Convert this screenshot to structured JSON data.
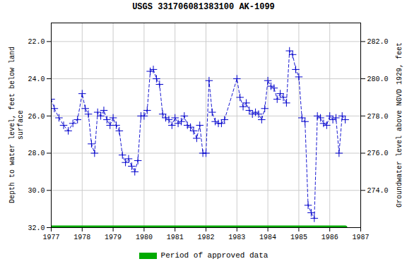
{
  "chart_data": {
    "type": "line",
    "title": "USGS 331706081383100 AK-1099",
    "ylabel": "Depth to water level, feet below land\nsurface",
    "y2label": "Groundwater level above NGVD 1929, feet",
    "x": [
      1977.0,
      1977.1,
      1977.25,
      1977.4,
      1977.55,
      1977.7,
      1977.85,
      1978.0,
      1978.1,
      1978.2,
      1978.3,
      1978.4,
      1978.5,
      1978.6,
      1978.7,
      1978.8,
      1978.9,
      1979.0,
      1979.1,
      1979.2,
      1979.3,
      1979.4,
      1979.5,
      1979.6,
      1979.7,
      1979.8,
      1979.9,
      1980.0,
      1980.1,
      1980.2,
      1980.3,
      1980.4,
      1980.5,
      1980.6,
      1980.7,
      1980.8,
      1980.9,
      1981.0,
      1981.1,
      1981.2,
      1981.3,
      1981.4,
      1981.5,
      1981.6,
      1981.7,
      1981.8,
      1981.9,
      1982.0,
      1982.1,
      1982.2,
      1982.3,
      1982.4,
      1982.5,
      1982.6,
      1983.0,
      1983.1,
      1983.2,
      1983.3,
      1983.4,
      1983.5,
      1983.6,
      1983.7,
      1983.8,
      1983.9,
      1984.0,
      1984.1,
      1984.2,
      1984.3,
      1984.4,
      1984.5,
      1984.6,
      1984.7,
      1984.8,
      1984.9,
      1985.0,
      1985.1,
      1985.2,
      1985.3,
      1985.4,
      1985.5,
      1985.6,
      1985.7,
      1985.8,
      1985.9,
      1986.0,
      1986.1,
      1986.2,
      1986.3,
      1986.4,
      1986.5
    ],
    "series": [
      {
        "color": "#0000cc",
        "marker": "plus",
        "line_style": "dashed",
        "values": [
          25.1,
          25.6,
          26.1,
          26.5,
          26.8,
          26.4,
          26.2,
          24.8,
          25.6,
          25.9,
          27.5,
          28.0,
          25.8,
          26.0,
          25.7,
          26.2,
          26.5,
          26.1,
          26.5,
          26.8,
          28.1,
          28.5,
          28.3,
          28.7,
          29.0,
          28.4,
          26.0,
          26.0,
          25.7,
          23.6,
          23.5,
          24.0,
          24.3,
          25.9,
          26.1,
          26.2,
          26.5,
          26.1,
          26.4,
          26.3,
          26.0,
          26.5,
          26.6,
          26.8,
          27.2,
          26.5,
          28.0,
          28.0,
          24.1,
          25.8,
          26.3,
          26.4,
          26.4,
          26.2,
          24.0,
          25.0,
          25.5,
          25.3,
          25.7,
          25.9,
          25.8,
          25.9,
          26.2,
          25.6,
          24.1,
          24.4,
          24.5,
          25.1,
          24.8,
          25.0,
          25.3,
          22.5,
          22.7,
          23.5,
          23.9,
          26.1,
          26.3,
          30.8,
          31.2,
          31.5,
          26.0,
          26.1,
          26.4,
          26.5,
          26.0,
          26.2,
          26.1,
          28.0,
          26.0,
          26.2
        ]
      },
      {
        "name": "Period of approved data",
        "color": "#00aa00",
        "type": "segment",
        "x": [
          1977.0,
          1986.5
        ],
        "values": [
          32.0,
          32.0
        ]
      }
    ],
    "xlim": [
      1977.0,
      1987.0
    ],
    "xticks": [
      1977,
      1978,
      1979,
      1980,
      1981,
      1982,
      1983,
      1984,
      1985,
      1986,
      1987
    ],
    "ylim": [
      32.0,
      21.0
    ],
    "yticks": [
      {
        "value": 22.0,
        "label": "22.0"
      },
      {
        "value": 24.0,
        "label": "24.0"
      },
      {
        "value": 26.0,
        "label": "26.0"
      },
      {
        "value": 28.0,
        "label": "28.0"
      },
      {
        "value": 30.0,
        "label": "30.0"
      },
      {
        "value": 32.0,
        "label": "32.0"
      }
    ],
    "y2lim": [
      272.0,
      283.0
    ],
    "y2ticks": [
      {
        "value": 274.0,
        "label": "274.0"
      },
      {
        "value": 276.0,
        "label": "276.0"
      },
      {
        "value": 278.0,
        "label": "278.0"
      },
      {
        "value": 280.0,
        "label": "280.0"
      },
      {
        "value": 282.0,
        "label": "282.0"
      }
    ],
    "grid": true,
    "legend": "bottom"
  }
}
